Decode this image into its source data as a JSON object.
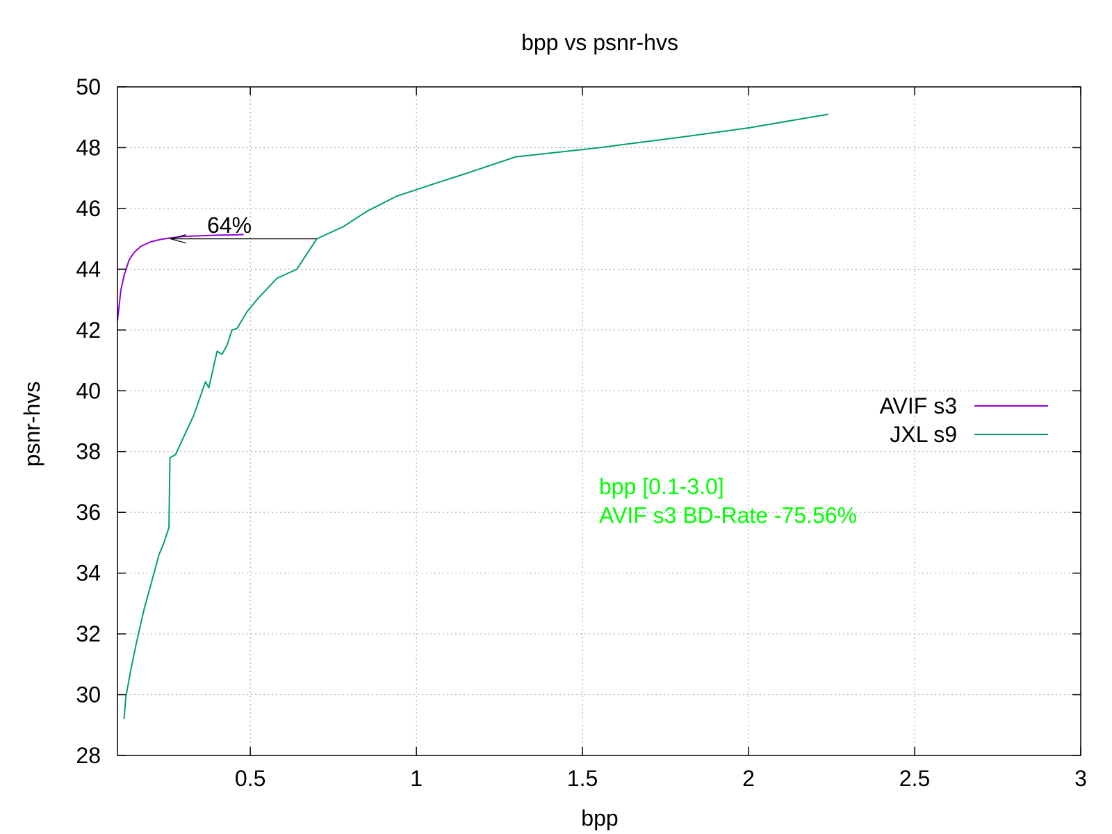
{
  "chart_data": {
    "type": "line",
    "title": "bpp vs psnr-hvs",
    "xlabel": "bpp",
    "ylabel": "psnr-hvs",
    "xlim": [
      0.1,
      3.0
    ],
    "ylim": [
      28,
      50
    ],
    "xticks": [
      0.5,
      1,
      1.5,
      2,
      2.5,
      3
    ],
    "xtick_labels": [
      "0.5",
      "1",
      "1.5",
      "2",
      "2.5",
      "3"
    ],
    "yticks": [
      28,
      30,
      32,
      34,
      36,
      38,
      40,
      42,
      44,
      46,
      48,
      50
    ],
    "ytick_labels": [
      "28",
      "30",
      "32",
      "34",
      "36",
      "38",
      "40",
      "42",
      "44",
      "46",
      "48",
      "50"
    ],
    "grid": true,
    "legend_position": "right",
    "series": [
      {
        "name": "AVIF s3",
        "color": "#9400d3",
        "points": [
          [
            0.1,
            42.3
          ],
          [
            0.11,
            43.3
          ],
          [
            0.12,
            43.8
          ],
          [
            0.135,
            44.3
          ],
          [
            0.15,
            44.55
          ],
          [
            0.17,
            44.75
          ],
          [
            0.2,
            44.9
          ],
          [
            0.23,
            44.98
          ],
          [
            0.26,
            45.03
          ],
          [
            0.3,
            45.08
          ],
          [
            0.35,
            45.1
          ],
          [
            0.4,
            45.12
          ],
          [
            0.45,
            45.13
          ],
          [
            0.48,
            45.14
          ]
        ]
      },
      {
        "name": "JXL s9",
        "color": "#009e73",
        "points": [
          [
            0.12,
            29.2
          ],
          [
            0.125,
            29.9
          ],
          [
            0.14,
            30.8
          ],
          [
            0.155,
            31.6
          ],
          [
            0.18,
            32.8
          ],
          [
            0.2,
            33.6
          ],
          [
            0.225,
            34.6
          ],
          [
            0.24,
            35.0
          ],
          [
            0.255,
            35.5
          ],
          [
            0.258,
            37.8
          ],
          [
            0.275,
            37.9
          ],
          [
            0.3,
            38.5
          ],
          [
            0.33,
            39.2
          ],
          [
            0.365,
            40.3
          ],
          [
            0.375,
            40.1
          ],
          [
            0.4,
            41.3
          ],
          [
            0.415,
            41.2
          ],
          [
            0.43,
            41.5
          ],
          [
            0.445,
            42.0
          ],
          [
            0.46,
            42.05
          ],
          [
            0.49,
            42.6
          ],
          [
            0.52,
            43.0
          ],
          [
            0.58,
            43.7
          ],
          [
            0.64,
            44.0
          ],
          [
            0.7,
            45.0
          ],
          [
            0.78,
            45.4
          ],
          [
            0.85,
            45.9
          ],
          [
            0.94,
            46.4
          ],
          [
            1.05,
            46.8
          ],
          [
            1.15,
            47.15
          ],
          [
            1.3,
            47.7
          ],
          [
            1.55,
            48.0
          ],
          [
            1.8,
            48.35
          ],
          [
            2.0,
            48.65
          ],
          [
            2.24,
            49.1
          ]
        ]
      }
    ],
    "annotations": [
      {
        "text": "64%",
        "x": 0.37,
        "y": 45.2
      },
      {
        "type": "arrow",
        "from": [
          0.7,
          45.0
        ],
        "to": [
          0.26,
          45.0
        ]
      },
      {
        "text": "bpp [0.1-3.0]",
        "x": 1.55,
        "y": 36.6,
        "color": "#00ff00"
      },
      {
        "text": "AVIF s3 BD-Rate -75.56%",
        "x": 1.55,
        "y": 35.65,
        "color": "#00ff00"
      }
    ]
  }
}
